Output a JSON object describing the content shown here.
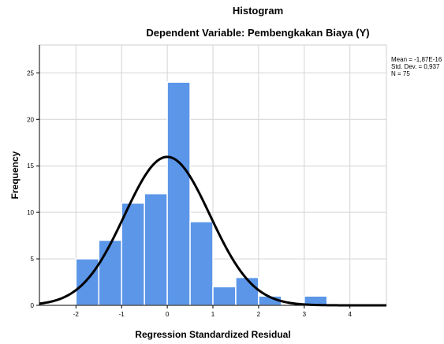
{
  "chart_data": {
    "type": "bar",
    "title": "Histogram",
    "subtitle": "Dependent Variable: Pembengkakan Biaya (Y)",
    "xlabel": "Regression Standardized Residual",
    "ylabel": "Frequency",
    "bin_width": 0.5,
    "bins": [
      {
        "start": -2.0,
        "end": -1.5,
        "value": 5
      },
      {
        "start": -1.5,
        "end": -1.0,
        "value": 7
      },
      {
        "start": -1.0,
        "end": -0.5,
        "value": 11
      },
      {
        "start": -0.5,
        "end": 0.0,
        "value": 12
      },
      {
        "start": 0.0,
        "end": 0.5,
        "value": 24
      },
      {
        "start": 0.5,
        "end": 1.0,
        "value": 9
      },
      {
        "start": 1.0,
        "end": 1.5,
        "value": 2
      },
      {
        "start": 1.5,
        "end": 2.0,
        "value": 3
      },
      {
        "start": 2.0,
        "end": 2.5,
        "value": 1
      },
      {
        "start": 2.5,
        "end": 3.0,
        "value": 0
      },
      {
        "start": 3.0,
        "end": 3.5,
        "value": 1
      }
    ],
    "xlim": [
      -2.8,
      4.8
    ],
    "ylim": [
      0,
      28
    ],
    "xticks": [
      -2,
      -1,
      0,
      1,
      2,
      3,
      4
    ],
    "xtick_labels": [
      "-2",
      "-1",
      "0",
      "1",
      "2",
      "3",
      "4"
    ],
    "yticks": [
      0,
      5,
      10,
      15,
      20,
      25
    ],
    "ytick_labels": [
      "0",
      "5",
      "10",
      "15",
      "20",
      "25"
    ],
    "grid": true,
    "normal_curve": {
      "mean": 0,
      "sd": 0.937,
      "n": 75
    },
    "stats": [
      "Mean = -1,87E-16",
      "Std. Dev. = 0,937",
      "N = 75"
    ],
    "bar_color": "#5b96e8",
    "curve_color": "#000000"
  }
}
